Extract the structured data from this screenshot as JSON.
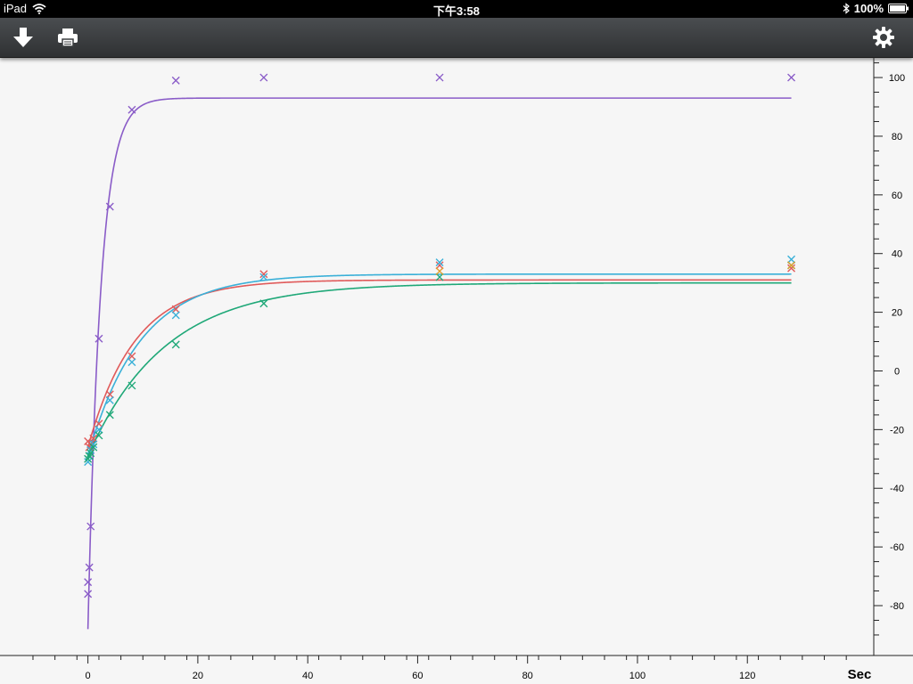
{
  "status_bar": {
    "device": "iPad",
    "time": "下午3:58",
    "battery": "100%",
    "icons": [
      "wifi-icon",
      "bluetooth-icon",
      "battery-icon"
    ]
  },
  "toolbar": {
    "buttons": [
      {
        "name": "download-button",
        "icon": "arrow-down-icon"
      },
      {
        "name": "print-button",
        "icon": "printer-icon"
      },
      {
        "name": "settings-button",
        "icon": "gear-icon"
      }
    ]
  },
  "chart_data": {
    "type": "scatter",
    "xlabel": "Sec",
    "ylabel": "",
    "xlim": [
      -16,
      143
    ],
    "ylim": [
      -97,
      107
    ],
    "x_ticks": [
      0,
      20,
      40,
      60,
      80,
      100,
      120
    ],
    "y_ticks": [
      -80,
      -60,
      -40,
      -20,
      0,
      20,
      40,
      60,
      80,
      100
    ],
    "y_axis_position": "right",
    "grid": false,
    "series": [
      {
        "color": "#8a5cc8",
        "points": [
          [
            0,
            -76
          ],
          [
            0,
            -72
          ],
          [
            0.25,
            -67
          ],
          [
            0.5,
            -53
          ],
          [
            2,
            11
          ],
          [
            4,
            56
          ],
          [
            8,
            89
          ],
          [
            16,
            99
          ],
          [
            32,
            100
          ],
          [
            64,
            100
          ],
          [
            128,
            100
          ]
        ],
        "fit": {
          "a": -88,
          "b": 93,
          "tau": 2.3
        }
      },
      {
        "color": "#e05a5a",
        "points": [
          [
            0,
            -24
          ],
          [
            0.25,
            -26
          ],
          [
            0.5,
            -25
          ],
          [
            1,
            -23
          ],
          [
            2,
            -18
          ],
          [
            4,
            -8
          ],
          [
            8,
            5
          ],
          [
            16,
            21
          ],
          [
            32,
            33
          ],
          [
            64,
            36
          ],
          [
            128,
            35
          ]
        ],
        "fit": {
          "a": -26,
          "b": 31,
          "tau": 8.5
        }
      },
      {
        "color": "#3ab0d8",
        "points": [
          [
            0,
            -31
          ],
          [
            0.25,
            -29
          ],
          [
            0.5,
            -27
          ],
          [
            1,
            -25
          ],
          [
            2,
            -20
          ],
          [
            4,
            -10
          ],
          [
            8,
            3
          ],
          [
            16,
            19
          ],
          [
            32,
            32
          ],
          [
            64,
            37
          ],
          [
            128,
            38
          ]
        ],
        "fit": {
          "a": -29,
          "b": 33,
          "tau": 9.5
        }
      },
      {
        "color": "#1fa878",
        "points": [
          [
            0,
            -30
          ],
          [
            0.25,
            -29
          ],
          [
            0.5,
            -28
          ],
          [
            1,
            -26
          ],
          [
            2,
            -22
          ],
          [
            4,
            -15
          ],
          [
            8,
            -5
          ],
          [
            16,
            9
          ],
          [
            32,
            23
          ],
          [
            64,
            32
          ],
          [
            128,
            36
          ]
        ],
        "fit": {
          "a": -29,
          "b": 30,
          "tau": 14
        }
      },
      {
        "color": "#e0a030",
        "points": [
          [
            64,
            34
          ],
          [
            128,
            36
          ]
        ],
        "fit": null
      }
    ]
  }
}
